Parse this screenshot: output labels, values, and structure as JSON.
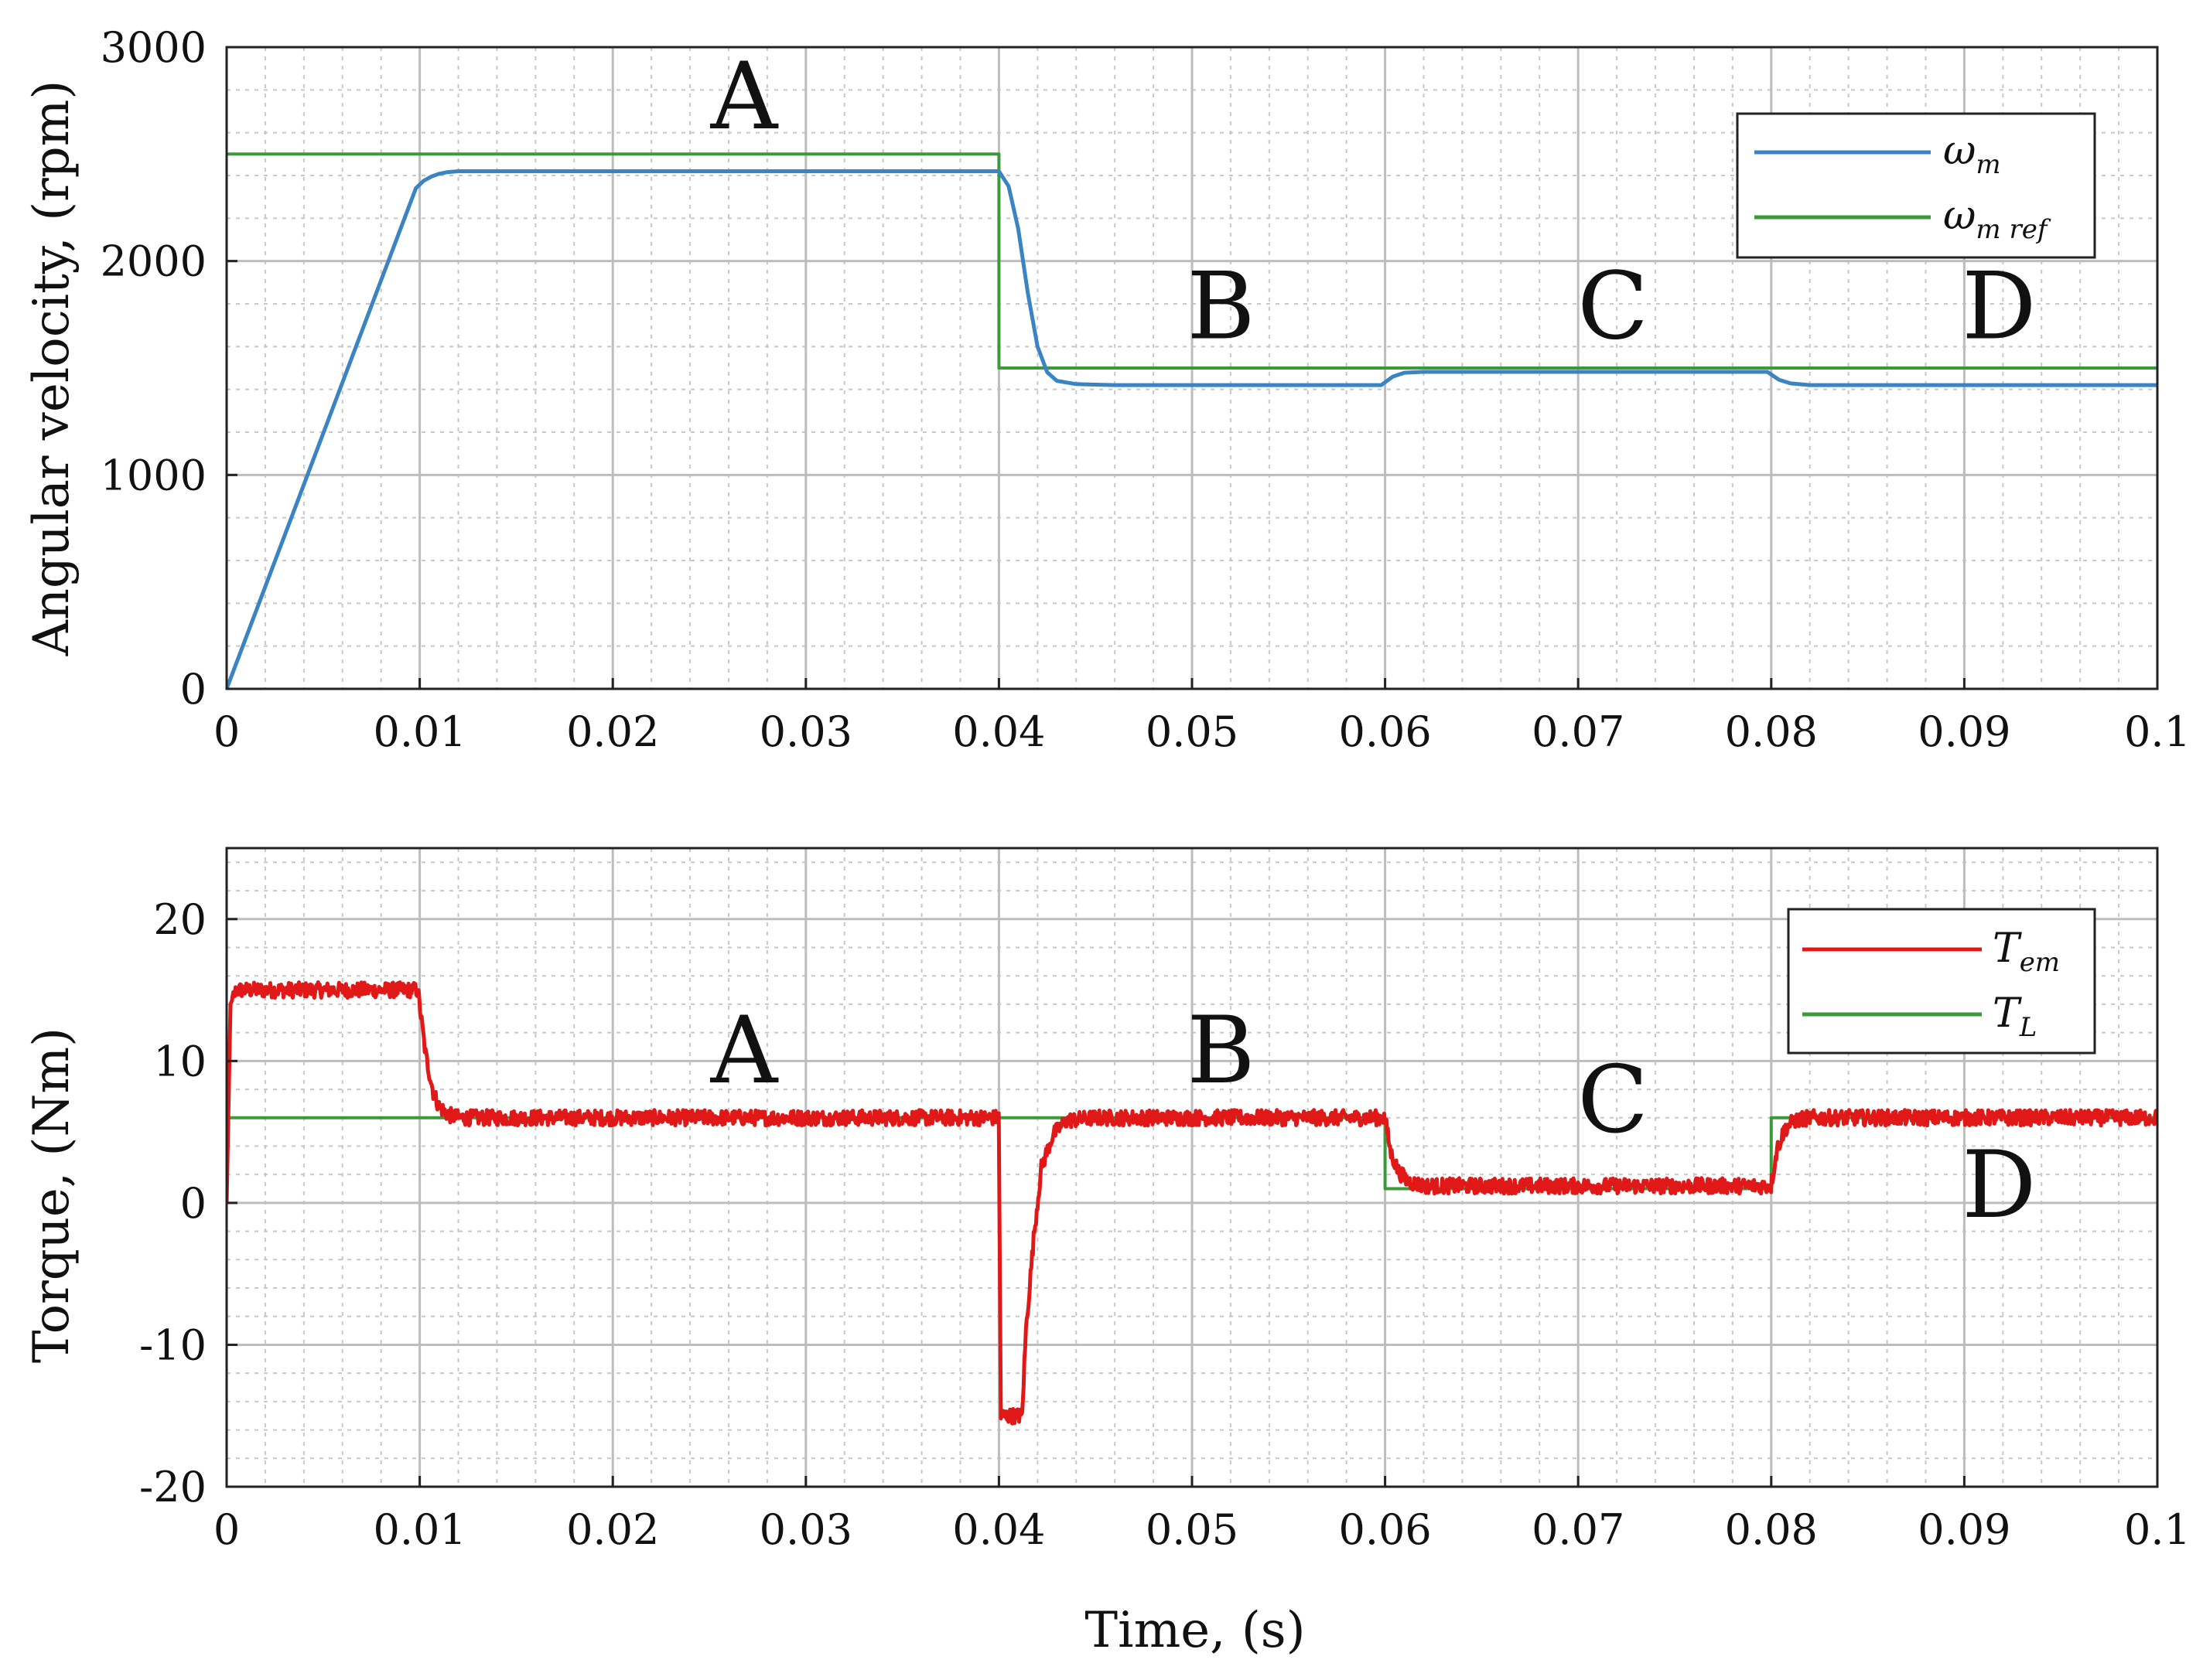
{
  "chart_data": [
    {
      "type": "line",
      "ylabel": "Angular velocity, (rpm)",
      "xlabel": "",
      "xlim": [
        0,
        0.1
      ],
      "ylim": [
        0,
        3000
      ],
      "xticks": [
        "0",
        "0.01",
        "0.02",
        "0.03",
        "0.04",
        "0.05",
        "0.06",
        "0.07",
        "0.08",
        "0.09",
        "0.1"
      ],
      "yticks": [
        "0",
        "1000",
        "2000",
        "3000"
      ],
      "grid": true,
      "minor_grid": true,
      "legend_position": "top-right",
      "legend": [
        {
          "symbol": "ω",
          "sub": "m"
        },
        {
          "symbol": "ω",
          "sub": "m ref"
        }
      ],
      "region_labels": [
        {
          "text": "A",
          "x": 0.0268,
          "y": 2620
        },
        {
          "text": "B",
          "x": 0.0515,
          "y": 1640
        },
        {
          "text": "C",
          "x": 0.0718,
          "y": 1640
        },
        {
          "text": "D",
          "x": 0.0918,
          "y": 1640
        }
      ],
      "series": [
        {
          "color": "#3b84c4",
          "x": [
            0,
            0.0098,
            0.0102,
            0.0106,
            0.011,
            0.0114,
            0.012,
            0.04,
            0.0405,
            0.041,
            0.0415,
            0.042,
            0.0425,
            0.043,
            0.044,
            0.046,
            0.0598,
            0.0604,
            0.061,
            0.062,
            0.0798,
            0.0804,
            0.081,
            0.082,
            0.1
          ],
          "y": [
            0,
            2340,
            2375,
            2395,
            2408,
            2415,
            2420,
            2420,
            2350,
            2150,
            1850,
            1600,
            1480,
            1440,
            1425,
            1420,
            1420,
            1460,
            1478,
            1482,
            1482,
            1445,
            1428,
            1420,
            1420
          ]
        },
        {
          "color": "#3a9a3a",
          "x": [
            0,
            0.04,
            0.04,
            0.1
          ],
          "y": [
            2500,
            2500,
            1500,
            1500
          ]
        }
      ]
    },
    {
      "type": "line",
      "ylabel": "Torque, (Nm)",
      "xlabel": "Time, (s)",
      "xlim": [
        0,
        0.1
      ],
      "ylim": [
        -20,
        25
      ],
      "xticks": [
        "0",
        "0.01",
        "0.02",
        "0.03",
        "0.04",
        "0.05",
        "0.06",
        "0.07",
        "0.08",
        "0.09",
        "0.1"
      ],
      "yticks": [
        "-20",
        "-10",
        "0",
        "10",
        "20"
      ],
      "grid": true,
      "minor_grid": true,
      "legend_position": "top-right",
      "legend": [
        {
          "symbol": "T",
          "sub": "em"
        },
        {
          "symbol": "T",
          "sub": "L"
        }
      ],
      "region_labels": [
        {
          "text": "A",
          "x": 0.0268,
          "y": 8.5
        },
        {
          "text": "B",
          "x": 0.0515,
          "y": 8.5
        },
        {
          "text": "C",
          "x": 0.0718,
          "y": 5.0
        },
        {
          "text": "D",
          "x": 0.0918,
          "y": -1.0
        }
      ],
      "series": [
        {
          "color": "#e01818",
          "noise": true,
          "x": [
            0,
            0.0002,
            0.0005,
            0.0099,
            0.0103,
            0.0107,
            0.011,
            0.0115,
            0.012,
            0.03999,
            0.0401,
            0.0412,
            0.0414,
            0.0418,
            0.0422,
            0.0428,
            0.0435,
            0.045,
            0.05999,
            0.0603,
            0.0607,
            0.0612,
            0.062,
            0.07999,
            0.0803,
            0.0807,
            0.0812,
            0.082,
            0.1
          ],
          "y": [
            0,
            14,
            15,
            15,
            10.5,
            7.8,
            6.8,
            6.2,
            6,
            6,
            -15,
            -15,
            -9,
            -2.5,
            2.5,
            4.8,
            5.8,
            6,
            6,
            3.5,
            2.2,
            1.5,
            1.2,
            1.2,
            3.8,
            5.2,
            5.8,
            6,
            6
          ]
        },
        {
          "color": "#3a9a3a",
          "x": [
            0,
            0.06,
            0.06,
            0.08,
            0.08,
            0.1
          ],
          "y": [
            6,
            6,
            1,
            1,
            6,
            6
          ]
        }
      ]
    }
  ],
  "colors": {
    "axis": "#222222",
    "grid_major": "#bdbdbd",
    "grid_minor": "#c8c8c8",
    "background": "#ffffff"
  }
}
